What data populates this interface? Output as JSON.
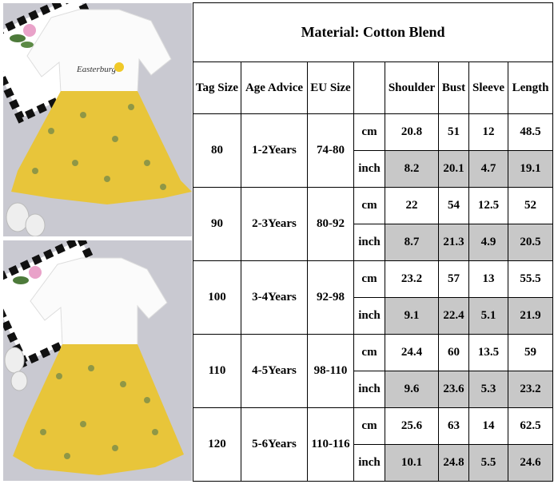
{
  "title": "Material: Cotton Blend",
  "headers": [
    "Tag Size",
    "Age Advice",
    "EU Size",
    "",
    "Shoulder",
    "Bust",
    "Sleeve",
    "Length"
  ],
  "units": [
    "cm",
    "inch"
  ],
  "rows": [
    {
      "tag": "80",
      "age": "1-2Years",
      "eu": "74-80",
      "cm": [
        "20.8",
        "51",
        "12",
        "48.5"
      ],
      "inch": [
        "8.2",
        "20.1",
        "4.7",
        "19.1"
      ]
    },
    {
      "tag": "90",
      "age": "2-3Years",
      "eu": "80-92",
      "cm": [
        "22",
        "54",
        "12.5",
        "52"
      ],
      "inch": [
        "8.7",
        "21.3",
        "4.9",
        "20.5"
      ]
    },
    {
      "tag": "100",
      "age": "3-4Years",
      "eu": "92-98",
      "cm": [
        "23.2",
        "57",
        "13",
        "55.5"
      ],
      "inch": [
        "9.1",
        "22.4",
        "5.1",
        "21.9"
      ]
    },
    {
      "tag": "110",
      "age": "4-5Years",
      "eu": "98-110",
      "cm": [
        "24.4",
        "60",
        "13.5",
        "59"
      ],
      "inch": [
        "9.6",
        "23.6",
        "5.3",
        "23.2"
      ]
    },
    {
      "tag": "120",
      "age": "5-6Years",
      "eu": "110-116",
      "cm": [
        "25.6",
        "63",
        "14",
        "62.5"
      ],
      "inch": [
        "10.1",
        "24.8",
        "5.5",
        "24.6"
      ]
    }
  ],
  "colors": {
    "shade": "#c8c8c8",
    "dress_yellow": "#e8c53a",
    "background_photo": "#c8c8d0"
  },
  "photo_text": {
    "shirt_print": "Easterburg"
  }
}
